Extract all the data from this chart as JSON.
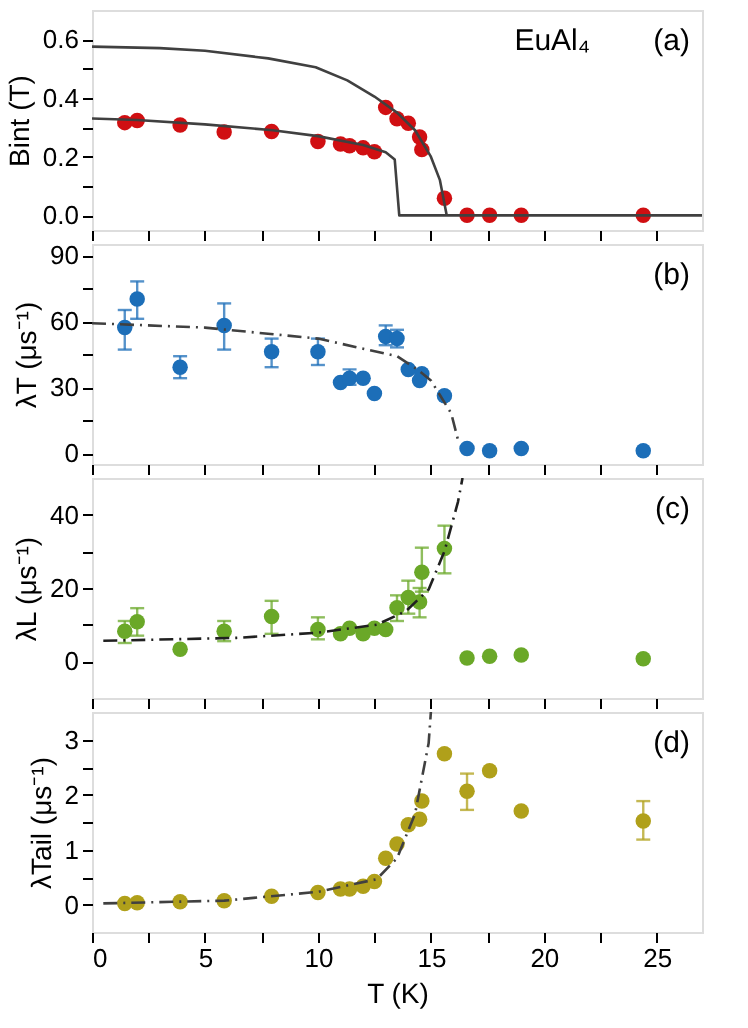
{
  "chart_data": [
    {
      "type": "scatter",
      "ylabel": "Bint (T)",
      "annotations": [
        "EuAl₄",
        "(a)"
      ],
      "xlim": [
        0,
        27
      ],
      "ylim": [
        -0.05,
        0.7
      ],
      "xticks": [
        0,
        {
          "value": 2.5,
          "label": null
        },
        5,
        {
          "value": 7.5,
          "label": null
        },
        10,
        {
          "value": 12.5,
          "label": null
        },
        15,
        {
          "value": 17.5,
          "label": null
        },
        20,
        {
          "value": 22.5,
          "label": null
        },
        25
      ],
      "yticks": [
        {
          "value": 0,
          "label": "0.0"
        },
        {
          "value": 0.1,
          "label": null
        },
        {
          "value": 0.2,
          "label": "0.2"
        },
        {
          "value": 0.3,
          "label": null
        },
        {
          "value": 0.4,
          "label": "0.4"
        },
        {
          "value": 0.5,
          "label": null
        },
        {
          "value": 0.6,
          "label": "0.6"
        }
      ],
      "tick_labels": "y",
      "grid": false,
      "x": [
        1.45,
        2.0,
        3.9,
        5.85,
        7.95,
        10.0,
        11.0,
        11.4,
        12.0,
        12.5,
        13.0,
        13.5,
        14.0,
        14.5,
        14.6,
        15.6,
        16.6,
        17.6,
        19.0,
        24.4
      ],
      "series": [
        {
          "marker": "circle",
          "color": "#d00f12",
          "values": [
            0.316,
            0.323,
            0.308,
            0.284,
            0.286,
            0.252,
            0.243,
            0.237,
            0.23,
            0.217,
            0.368,
            0.329,
            0.314,
            0.267,
            0.224,
            0.058,
            0,
            0,
            0,
            0
          ]
        },
        {
          "type": "line",
          "marker": "none",
          "color": "#404040",
          "line_style": "solid",
          "x": [
            0,
            3,
            5,
            7.8,
            9.9,
            11.3,
            12.5,
            13.5,
            14.3,
            15,
            15.4,
            15.7
          ],
          "values": [
            0.575,
            0.57,
            0.561,
            0.535,
            0.505,
            0.46,
            0.405,
            0.35,
            0.29,
            0.2,
            0.12,
            0
          ]
        },
        {
          "type": "line",
          "marker": "none",
          "color": "#404040",
          "line_style": "solid",
          "x": [
            0,
            2,
            5,
            8,
            10,
            12,
            13,
            13.4,
            13.6,
            27
          ],
          "values": [
            0.33,
            0.325,
            0.31,
            0.29,
            0.27,
            0.24,
            0.215,
            0.19,
            0,
            0
          ]
        }
      ]
    },
    {
      "type": "scatter",
      "ylabel": "λT (μs⁻¹)",
      "annotations": [
        "(b)"
      ],
      "xlim": [
        0,
        27
      ],
      "ylim": [
        -5,
        95
      ],
      "xticks": [
        0,
        {
          "value": 2.5,
          "label": null
        },
        5,
        {
          "value": 7.5,
          "label": null
        },
        10,
        {
          "value": 12.5,
          "label": null
        },
        15,
        {
          "value": 17.5,
          "label": null
        },
        20,
        {
          "value": 22.5,
          "label": null
        },
        25
      ],
      "yticks": [
        0,
        {
          "value": 15,
          "label": null
        },
        30,
        {
          "value": 45,
          "label": null
        },
        60,
        {
          "value": 75,
          "label": null
        },
        90
      ],
      "tick_labels": "y",
      "grid": false,
      "x": [
        1.45,
        2.0,
        3.9,
        5.85,
        7.95,
        10.0,
        11.0,
        11.4,
        12.0,
        12.5,
        13.0,
        13.5,
        14.0,
        14.5,
        14.6,
        15.6,
        16.6,
        17.6,
        19.0,
        24.4
      ],
      "series": [
        {
          "marker": "circle",
          "color": "#1c6eb8",
          "values": [
            57,
            70,
            39,
            58,
            46,
            46,
            32,
            34,
            34,
            27,
            53,
            52,
            38,
            33,
            36,
            26,
            2,
            1,
            2,
            1
          ],
          "errors": [
            [
              47,
              65
            ],
            [
              61,
              78
            ],
            [
              34,
              44
            ],
            [
              47,
              68
            ],
            [
              39,
              52
            ],
            [
              40,
              52
            ],
            null,
            [
              31,
              38
            ],
            null,
            null,
            [
              49,
              58
            ],
            [
              48,
              56
            ],
            null,
            null,
            null,
            null,
            null,
            null,
            null,
            null
          ]
        },
        {
          "type": "line",
          "marker": "none",
          "color": "#404040",
          "line_style": "dashdot",
          "x": [
            0,
            5,
            10,
            13.5,
            14.4,
            15,
            15.9,
            16.2
          ],
          "values": [
            59,
            57,
            52,
            44,
            38,
            33,
            18,
            6
          ]
        }
      ]
    },
    {
      "type": "scatter",
      "ylabel": "λL (μs⁻¹)",
      "annotations": [
        "(c)"
      ],
      "xlim": [
        0,
        27
      ],
      "ylim": [
        -10,
        50
      ],
      "xticks": [
        0,
        {
          "value": 2.5,
          "label": null
        },
        5,
        {
          "value": 7.5,
          "label": null
        },
        10,
        {
          "value": 12.5,
          "label": null
        },
        15,
        {
          "value": 17.5,
          "label": null
        },
        20,
        {
          "value": 22.5,
          "label": null
        },
        25
      ],
      "yticks": [
        0,
        {
          "value": 10,
          "label": null
        },
        20,
        {
          "value": 30,
          "label": null
        },
        40
      ],
      "tick_labels": "y",
      "grid": false,
      "x": [
        1.45,
        2.0,
        3.9,
        5.85,
        7.95,
        10.0,
        11.0,
        11.4,
        12.0,
        12.5,
        13.0,
        13.5,
        14.0,
        14.5,
        14.6,
        15.6,
        16.6,
        17.6,
        19.0,
        24.4
      ],
      "series": [
        {
          "marker": "circle",
          "color": "#6aa828",
          "values": [
            8.2,
            10.8,
            3.3,
            8.2,
            12.2,
            8.7,
            7.5,
            9,
            7.5,
            9,
            8.7,
            14.6,
            17.4,
            16.2,
            24.3,
            30.8,
            0.9,
            1.4,
            1.7,
            0.7
          ],
          "errors": [
            [
              5,
              11
            ],
            [
              7,
              14.5
            ],
            null,
            [
              5.5,
              11
            ],
            [
              7.5,
              16.5
            ],
            [
              6,
              12
            ],
            null,
            null,
            null,
            null,
            null,
            [
              11,
              18
            ],
            [
              13,
              22
            ],
            [
              12,
              20
            ],
            [
              19,
              31
            ],
            [
              24,
              37
            ],
            null,
            null,
            null,
            null
          ]
        },
        {
          "type": "line",
          "marker": "none",
          "color": "#202020",
          "line_style": "dashdot",
          "x": [
            0.5,
            6.4,
            10,
            12.6,
            13.9,
            14.9,
            15.6,
            16.2,
            16.4
          ],
          "values": [
            5.6,
            6.4,
            7.8,
            10,
            13.7,
            19.6,
            30,
            43.5,
            50
          ]
        }
      ]
    },
    {
      "type": "scatter",
      "xlabel": "T (K)",
      "ylabel": "λTail (μs⁻¹)",
      "annotations": [
        "(d)"
      ],
      "xlim": [
        0,
        27
      ],
      "ylim": [
        -0.5,
        3.5
      ],
      "xticks": [
        0,
        {
          "value": 2.5,
          "label": null
        },
        5,
        {
          "value": 7.5,
          "label": null
        },
        10,
        {
          "value": 12.5,
          "label": null
        },
        15,
        {
          "value": 17.5,
          "label": null
        },
        20,
        {
          "value": 22.5,
          "label": null
        },
        25
      ],
      "yticks": [
        0,
        {
          "value": 0.5,
          "label": null
        },
        1,
        {
          "value": 1.5,
          "label": null
        },
        2,
        {
          "value": 2.5,
          "label": null
        },
        3
      ],
      "grid": false,
      "x": [
        1.45,
        2.0,
        3.9,
        5.85,
        7.95,
        10.0,
        11.0,
        11.4,
        12.0,
        12.5,
        13.0,
        13.5,
        14.0,
        14.5,
        14.6,
        15.6,
        16.6,
        17.6,
        19.0,
        24.4
      ],
      "series": [
        {
          "marker": "circle",
          "color": "#b0a01a",
          "values": [
            0.02,
            0.03,
            0.05,
            0.07,
            0.15,
            0.22,
            0.28,
            0.28,
            0.33,
            0.42,
            0.84,
            1.1,
            1.45,
            1.55,
            1.88,
            2.74,
            2.06,
            2.43,
            1.7,
            1.52
          ],
          "errors": [
            null,
            null,
            null,
            null,
            null,
            null,
            null,
            null,
            null,
            null,
            null,
            null,
            null,
            null,
            null,
            null,
            [
              1.72,
              2.38
            ],
            null,
            null,
            [
              1.18,
              1.88
            ]
          ]
        },
        {
          "type": "line",
          "marker": "none",
          "color": "#404040",
          "line_style": "dashdot",
          "x": [
            0.5,
            5.85,
            10,
            12.6,
            13.5,
            14.3,
            14.9,
            15.0
          ],
          "values": [
            0.02,
            0.07,
            0.23,
            0.46,
            0.84,
            1.65,
            2.93,
            3.5
          ]
        }
      ]
    }
  ]
}
